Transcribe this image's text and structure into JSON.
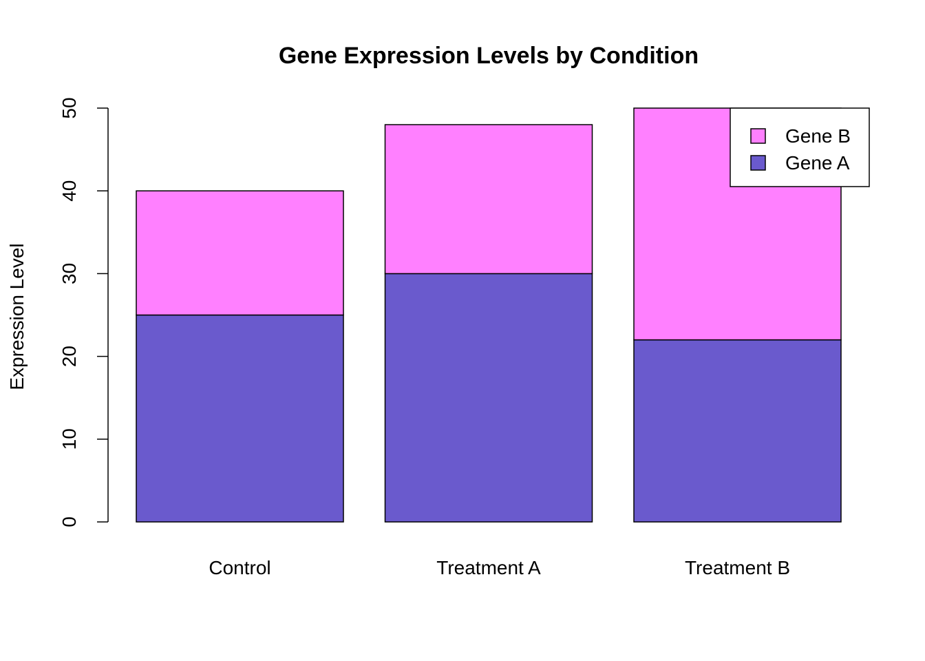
{
  "chart_data": {
    "type": "bar",
    "stacked": true,
    "title": "Gene Expression Levels by Condition",
    "xlabel": "",
    "ylabel": "Expression Level",
    "categories": [
      "Control",
      "Treatment A",
      "Treatment B"
    ],
    "series": [
      {
        "name": "Gene A",
        "values": [
          25,
          30,
          22
        ],
        "color": "#6a5acd"
      },
      {
        "name": "Gene B",
        "values": [
          15,
          18,
          28
        ],
        "color": "#ff80ff"
      }
    ],
    "ylim": [
      0,
      50
    ],
    "yticks": [
      0,
      10,
      20,
      30,
      40,
      50
    ],
    "grid": false,
    "legend_position": "top-right",
    "legend_order": [
      "Gene B",
      "Gene A"
    ]
  }
}
